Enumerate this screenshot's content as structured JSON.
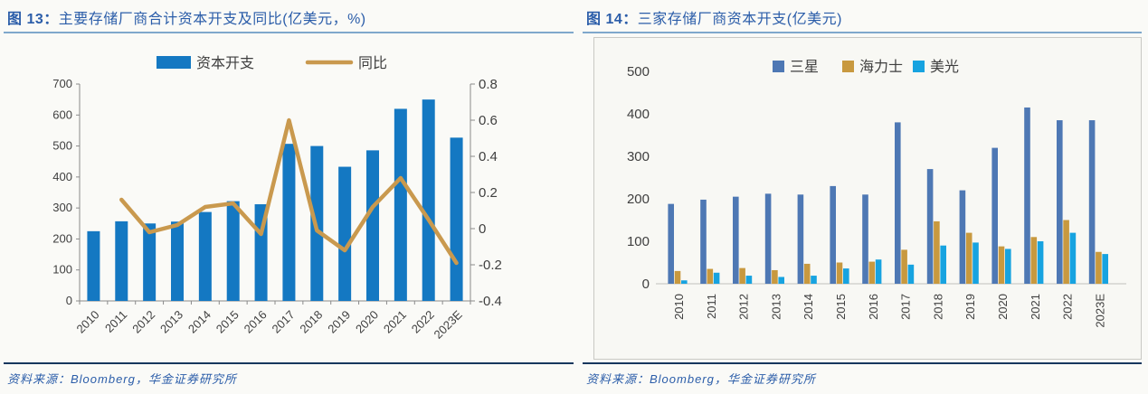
{
  "page": {
    "background": "#FAFAF7"
  },
  "left_figure": {
    "figure_label": "图 13：",
    "title": "主要存储厂商合计资本开支及同比(亿美元，%)",
    "source": "资料来源：Bloomberg，华金证券研究所"
  },
  "right_figure": {
    "figure_label": "图 14：",
    "title": "三家存储厂商资本开支(亿美元)",
    "source": "资料来源：Bloomberg，华金证券研究所"
  },
  "colors": {
    "title_blue": "#2B5DA9",
    "title_underline": "#7FA8CC",
    "source_divider_navy": "#17375E",
    "axis_gray": "#8A8A8A",
    "label_gray": "#3F3F3F",
    "capex_bar_blue": "#1478C2",
    "yoy_line_gold": "#C9994E",
    "samsung_blue": "#4E78B4",
    "hynix_gold": "#C8993F",
    "micron_cyan": "#17A3E0"
  },
  "chart_data": [
    {
      "type": "combo_bar_line",
      "title": "主要存储厂商合计资本开支及同比(亿美元，%)",
      "categories": [
        "2010",
        "2011",
        "2012",
        "2013",
        "2014",
        "2015",
        "2016",
        "2017",
        "2018",
        "2019",
        "2020",
        "2021",
        "2022",
        "2023E"
      ],
      "series": [
        {
          "name": "资本开支",
          "chart_type": "bar",
          "axis": "left",
          "color": "#1478C2",
          "values": [
            225,
            257,
            250,
            256,
            287,
            322,
            312,
            507,
            500,
            433,
            486,
            620,
            650,
            527
          ]
        },
        {
          "name": "同比",
          "chart_type": "line",
          "axis": "right",
          "color": "#C9994E",
          "values": [
            null,
            0.16,
            -0.02,
            0.02,
            0.12,
            0.14,
            -0.03,
            0.6,
            -0.01,
            -0.12,
            0.12,
            0.28,
            0.05,
            -0.19
          ]
        }
      ],
      "left_axis": {
        "min": 0,
        "max": 700,
        "step": 100
      },
      "right_axis": {
        "min": -0.4,
        "max": 0.8,
        "step": 0.2
      },
      "legend_position": "top",
      "gridlines": false
    },
    {
      "type": "bar",
      "title": "三家存储厂商资本开支(亿美元)",
      "categories": [
        "2010",
        "2011",
        "2012",
        "2013",
        "2014",
        "2015",
        "2016",
        "2017",
        "2018",
        "2019",
        "2020",
        "2021",
        "2022",
        "2023E"
      ],
      "series": [
        {
          "name": "三星",
          "color": "#4E78B4",
          "values": [
            188,
            198,
            205,
            212,
            210,
            230,
            210,
            380,
            270,
            220,
            320,
            415,
            385,
            385
          ]
        },
        {
          "name": "海力士",
          "color": "#C8993F",
          "values": [
            30,
            35,
            37,
            32,
            47,
            50,
            52,
            80,
            147,
            120,
            88,
            110,
            150,
            75
          ]
        },
        {
          "name": "美光",
          "color": "#17A3E0",
          "values": [
            8,
            26,
            19,
            16,
            19,
            36,
            57,
            45,
            90,
            97,
            82,
            100,
            120,
            70
          ]
        }
      ],
      "y_axis": {
        "min": 0,
        "max": 500,
        "step": 100
      },
      "legend_position": "top",
      "gridlines": false
    }
  ]
}
